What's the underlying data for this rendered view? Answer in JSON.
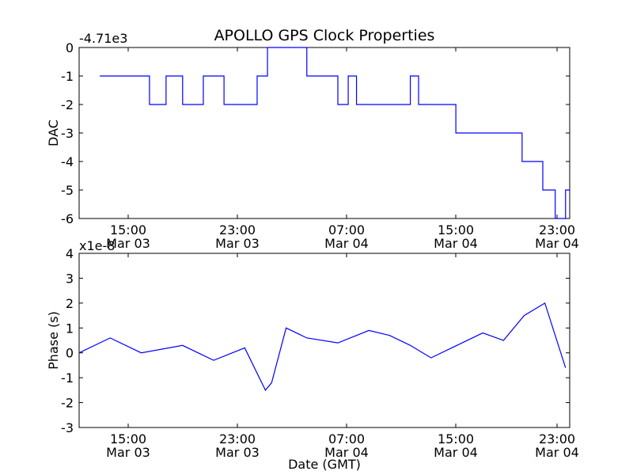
{
  "chart_data": [
    {
      "type": "line",
      "title": "APOLLO GPS Clock Properties",
      "ylabel": "DAC",
      "xlabel": "",
      "offset_label": "-4.71e3",
      "color": "#0000ff",
      "xlim": [
        10,
        33.7
      ],
      "ylim": [
        -6,
        0
      ],
      "yticks": [
        "0",
        "-1",
        "-2",
        "-3",
        "-4",
        "-5",
        "-6"
      ],
      "xticks": [
        {
          "time": "15:00",
          "date": "Mar 03"
        },
        {
          "time": "23:00",
          "date": "Mar 03"
        },
        {
          "time": "07:00",
          "date": "Mar 04"
        },
        {
          "time": "15:00",
          "date": "Mar 04"
        },
        {
          "time": "23:00",
          "date": "Mar 04"
        }
      ],
      "series": [
        {
          "x": [
            11.0,
            13.4,
            14.2,
            15.0,
            16.0,
            17.0,
            18.6,
            19.1,
            21.0,
            22.5,
            23.0,
            23.4,
            24.5,
            26.0,
            26.4,
            27.0,
            28.2,
            30.2,
            31.4,
            32.4,
            33.0,
            33.5
          ],
          "y": [
            -1,
            -2,
            -1,
            -2,
            -1,
            -2,
            -1,
            0,
            -1,
            -2,
            -1,
            -2,
            -2,
            -1,
            -2,
            -2,
            -3,
            -3,
            -4,
            -5,
            -6,
            -5
          ]
        }
      ]
    },
    {
      "type": "line",
      "title": "",
      "ylabel": "Phase (s)",
      "xlabel": "Date (GMT)",
      "offset_label": "x1e-8",
      "color": "#0000ff",
      "xlim": [
        10,
        33.7
      ],
      "ylim": [
        -3,
        4
      ],
      "yticks": [
        "4",
        "3",
        "2",
        "1",
        "0",
        "-1",
        "-2",
        "-3"
      ],
      "xticks": [
        {
          "time": "15:00",
          "date": "Mar 03"
        },
        {
          "time": "23:00",
          "date": "Mar 03"
        },
        {
          "time": "07:00",
          "date": "Mar 04"
        },
        {
          "time": "15:00",
          "date": "Mar 04"
        },
        {
          "time": "23:00",
          "date": "Mar 04"
        }
      ],
      "series": [
        {
          "x": [
            10.0,
            11.5,
            13.0,
            15.0,
            16.5,
            18.0,
            19.0,
            19.3,
            20.0,
            21.0,
            22.5,
            24.0,
            25.0,
            26.0,
            27.0,
            28.0,
            29.5,
            30.5,
            31.5,
            32.5,
            33.5
          ],
          "y": [
            0.0,
            0.6,
            0.0,
            0.3,
            -0.3,
            0.2,
            -1.5,
            -1.2,
            1.0,
            0.6,
            0.4,
            0.9,
            0.7,
            0.3,
            -0.2,
            0.2,
            0.8,
            0.5,
            1.5,
            2.0,
            -0.6
          ]
        }
      ]
    }
  ]
}
